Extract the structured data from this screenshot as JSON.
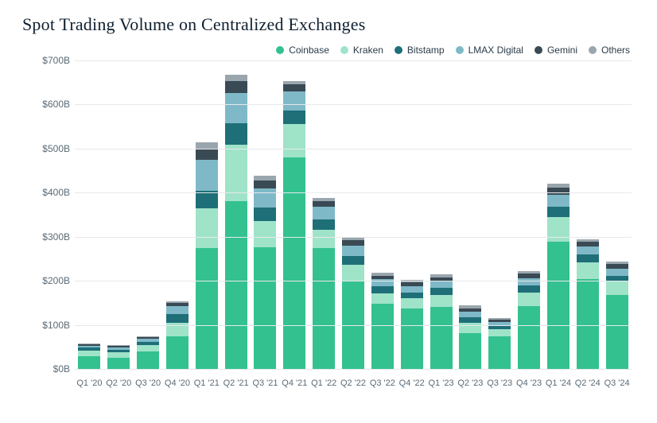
{
  "title": "Spot Trading Volume on Centralized Exchanges",
  "chart": {
    "type": "stacked-bar",
    "background_color": "#ffffff",
    "grid_color": "#e6e9eb",
    "title_fontsize": 22,
    "label_fontsize": 12,
    "xlabel_fontsize": 11,
    "text_color": "#5a6a76",
    "title_color": "#0f2030",
    "ylim": [
      0,
      700
    ],
    "ytick_step": 100,
    "ytick_prefix": "$",
    "ytick_suffix": "B",
    "bar_width": 0.76,
    "series": [
      {
        "name": "Coinbase",
        "color": "#33c190"
      },
      {
        "name": "Kraken",
        "color": "#9fe3c9"
      },
      {
        "name": "Bitstamp",
        "color": "#1e6f78"
      },
      {
        "name": "LMAX Digital",
        "color": "#7fb9c8"
      },
      {
        "name": "Gemini",
        "color": "#3a4a54"
      },
      {
        "name": "Others",
        "color": "#9aa6ad"
      }
    ],
    "categories": [
      "Q1 '20",
      "Q2 '20",
      "Q3 '20",
      "Q4 '20",
      "Q1 '21",
      "Q2 '21",
      "Q3 '21",
      "Q4 '21",
      "Q1 '22",
      "Q2 '22",
      "Q3 '22",
      "Q4 '22",
      "Q1 '23",
      "Q2 '23",
      "Q3 '23",
      "Q4 '23",
      "Q1 '24",
      "Q2 '24",
      "Q3 '24"
    ],
    "values": [
      [
        28,
        14,
        6,
        4,
        4,
        2
      ],
      [
        26,
        12,
        6,
        4,
        4,
        2
      ],
      [
        40,
        14,
        8,
        6,
        4,
        2
      ],
      [
        74,
        30,
        20,
        18,
        8,
        4
      ],
      [
        275,
        90,
        40,
        70,
        25,
        14
      ],
      [
        380,
        128,
        50,
        68,
        28,
        14
      ],
      [
        276,
        60,
        30,
        44,
        18,
        10
      ],
      [
        480,
        76,
        30,
        44,
        16,
        8
      ],
      [
        274,
        42,
        24,
        28,
        12,
        8
      ],
      [
        198,
        38,
        20,
        24,
        12,
        8
      ],
      [
        148,
        24,
        16,
        16,
        8,
        6
      ],
      [
        138,
        22,
        14,
        14,
        8,
        6
      ],
      [
        140,
        28,
        16,
        16,
        8,
        6
      ],
      [
        82,
        22,
        14,
        12,
        8,
        6
      ],
      [
        74,
        16,
        8,
        8,
        6,
        4
      ],
      [
        142,
        32,
        16,
        16,
        10,
        6
      ],
      [
        288,
        56,
        24,
        28,
        16,
        8
      ],
      [
        204,
        38,
        18,
        18,
        10,
        6
      ],
      [
        168,
        30,
        14,
        16,
        10,
        6
      ]
    ]
  }
}
